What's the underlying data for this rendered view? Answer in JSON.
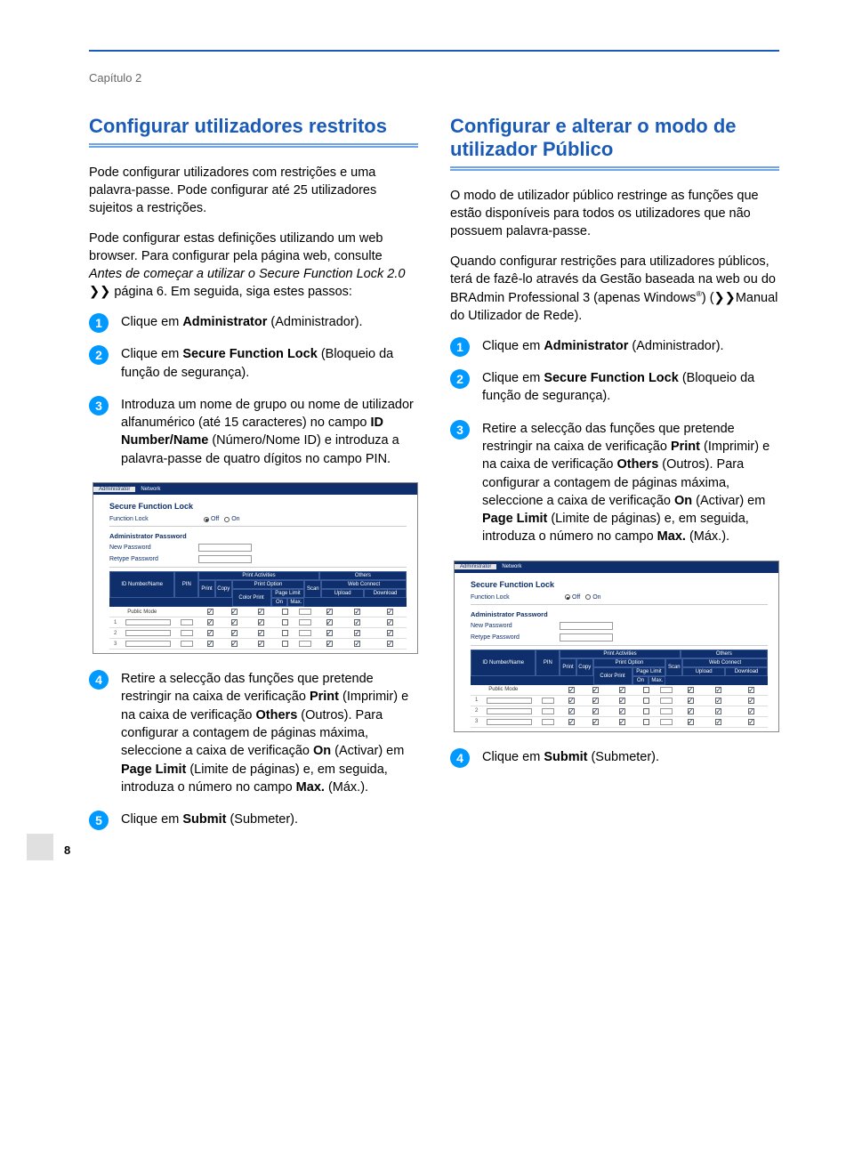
{
  "colors": {
    "accent": "#1b5bb8",
    "badge": "#0099ff",
    "navy": "#0e2f6b"
  },
  "chapter": "Capítulo 2",
  "left": {
    "heading": "Configurar utilizadores restritos",
    "p1": "Pode configurar utilizadores com restrições e uma palavra-passe. Pode configurar até 25 utilizadores sujeitos a restrições.",
    "p2_a": "Pode configurar estas definições utilizando um web browser. Para configurar pela página web, consulte ",
    "p2_i": "Antes de começar a utilizar o Secure Function Lock 2.0",
    "p2_b": " ",
    "p2_arrows": "❯❯",
    "p2_c": " página 6. Em seguida, siga estes passos:",
    "s1_a": "Clique em ",
    "s1_b": "Administrator",
    "s1_c": " (Administrador).",
    "s2_a": "Clique em ",
    "s2_b": "Secure Function Lock",
    "s2_c": " (Bloqueio da função de segurança).",
    "s3_a": "Introduza um nome de grupo ou nome de utilizador alfanumérico (até 15 caracteres) no campo ",
    "s3_b": "ID Number/Name",
    "s3_c": " (Número/Nome ID) e introduza a palavra-passe de quatro dígitos no campo PIN.",
    "s4_a": "Retire a selecção das funções que pretende restringir na caixa de verificação ",
    "s4_b": "Print",
    "s4_c": " (Imprimir) e na caixa de verificação ",
    "s4_d": "Others",
    "s4_e": " (Outros). Para configurar a contagem de páginas máxima, seleccione a caixa de verificação ",
    "s4_f": "On",
    "s4_g": " (Activar) em ",
    "s4_h": "Page Limit",
    "s4_i": " (Limite de páginas) e, em seguida, introduza o número no campo ",
    "s4_j": "Max.",
    "s4_k": " (Máx.).",
    "s5_a": "Clique em ",
    "s5_b": "Submit",
    "s5_c": " (Submeter)."
  },
  "right": {
    "heading": "Configurar e alterar o modo de utilizador Público",
    "p1": "O modo de utilizador público restringe as funções que estão disponíveis para todos os utilizadores que não possuem palavra-passe.",
    "p2_a": "Quando configurar restrições para utilizadores públicos, terá de fazê-lo através da Gestão baseada na web ou do BRAdmin Professional 3 (apenas Windows",
    "p2_sup": "®",
    "p2_b": ") (",
    "p2_arrows": "❯❯",
    "p2_c": "Manual do Utilizador de Rede).",
    "s1_a": "Clique em ",
    "s1_b": "Administrator",
    "s1_c": " (Administrador).",
    "s2_a": "Clique em ",
    "s2_b": "Secure Function Lock",
    "s2_c": " (Bloqueio da função de segurança).",
    "s3_a": "Retire a selecção das funções que pretende restringir na caixa de verificação ",
    "s3_b": "Print",
    "s3_c": " (Imprimir) e na caixa de verificação ",
    "s3_d": "Others",
    "s3_e": " (Outros). Para configurar a contagem de páginas máxima, seleccione a caixa de verificação ",
    "s3_f": "On",
    "s3_g": " (Activar) em ",
    "s3_h": "Page Limit",
    "s3_i": " (Limite de páginas) e, em seguida, introduza o número no campo ",
    "s3_j": "Max.",
    "s3_k": " (Máx.).",
    "s4_a": "Clique em ",
    "s4_b": "Submit",
    "s4_c": " (Submeter)."
  },
  "screenshot": {
    "tabs": {
      "admin": "Administrator",
      "network": "Network"
    },
    "title": "Secure Function Lock",
    "functionLock": "Function Lock",
    "off": "Off",
    "on": "On",
    "adminPw": "Administrator Password",
    "newPw": "New Password",
    "retypePw": "Retype Password",
    "head": {
      "id": "ID Number/Name",
      "pin": "PIN",
      "printActivities": "Print Activities",
      "others": "Others",
      "print": "Print",
      "copy": "Copy",
      "printOption": "Print Option",
      "colorPrint": "Color Print",
      "pageLimit": "Page Limit",
      "onH": "On",
      "max": "Max.",
      "scan": "Scan",
      "webConnect": "Web Connect",
      "upload": "Upload",
      "download": "Download",
      "publicMode": "Public Mode"
    },
    "rowLabels": [
      "1",
      "2",
      "3"
    ]
  },
  "pageNumber": "8"
}
